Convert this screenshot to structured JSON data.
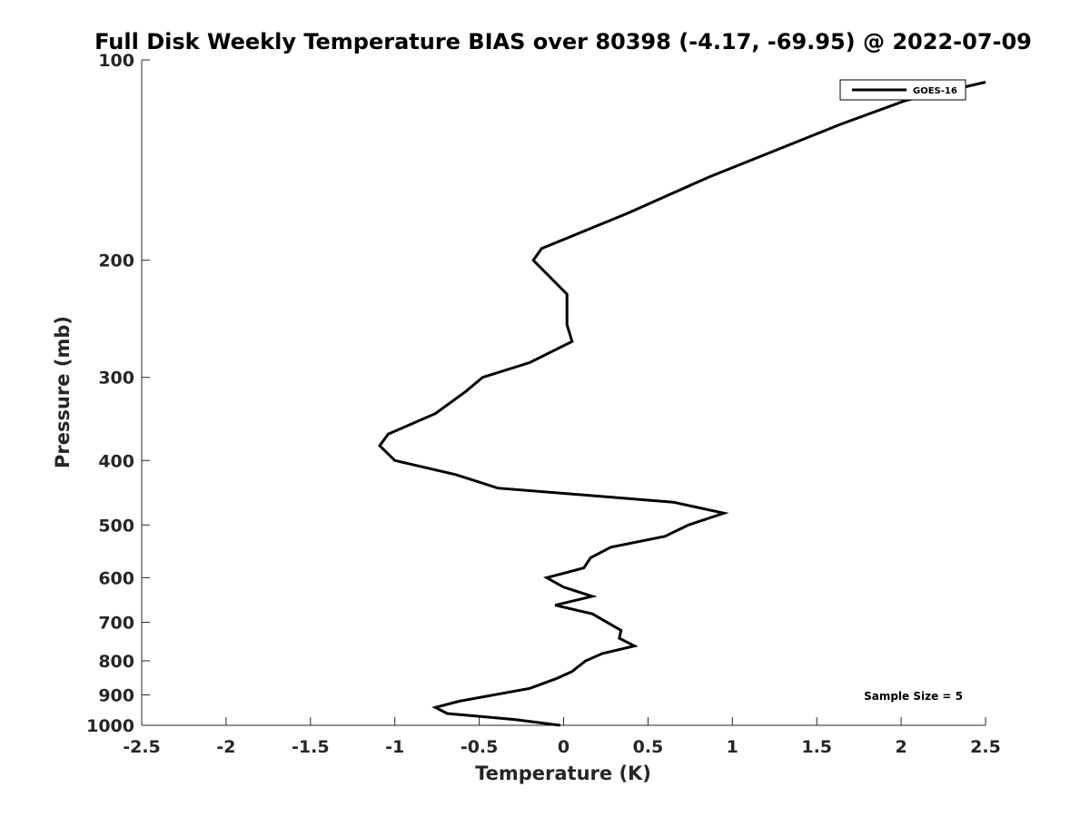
{
  "chart_data": {
    "type": "line",
    "title": "Full Disk Weekly Temperature BIAS over 80398 (-4.17, -69.95) @ 2022-07-09",
    "xlabel": "Temperature (K)",
    "ylabel": "Pressure (mb)",
    "xlim": [
      -2.5,
      2.5
    ],
    "ylim": [
      1000,
      100
    ],
    "yscale": "log",
    "y_reversed": true,
    "xticks": [
      -2.5,
      -2,
      -1.5,
      -1,
      -0.5,
      0,
      0.5,
      1,
      1.5,
      2,
      2.5
    ],
    "xtick_labels": [
      "-2.5",
      "-2",
      "-1.5",
      "-1",
      "-0.5",
      "0",
      "0.5",
      "1",
      "1.5",
      "2",
      "2.5"
    ],
    "yticks": [
      100,
      200,
      300,
      400,
      500,
      600,
      700,
      800,
      900,
      1000
    ],
    "ytick_labels": [
      "100",
      "200",
      "300",
      "400",
      "500",
      "600",
      "700",
      "800",
      "900",
      "1000"
    ],
    "grid": false,
    "legend_position": "top-right",
    "annotation": "Sample Size = 5",
    "series": [
      {
        "name": "GOES-16",
        "color": "#000000",
        "points": [
          {
            "x": 2.5,
            "y": 108
          },
          {
            "x": 2.03,
            "y": 115
          },
          {
            "x": 1.64,
            "y": 125
          },
          {
            "x": 0.86,
            "y": 150
          },
          {
            "x": 0.38,
            "y": 170
          },
          {
            "x": -0.13,
            "y": 192
          },
          {
            "x": -0.18,
            "y": 200
          },
          {
            "x": 0.02,
            "y": 225
          },
          {
            "x": 0.02,
            "y": 250
          },
          {
            "x": 0.05,
            "y": 265
          },
          {
            "x": -0.2,
            "y": 285
          },
          {
            "x": -0.48,
            "y": 300
          },
          {
            "x": -0.58,
            "y": 315
          },
          {
            "x": -0.76,
            "y": 340
          },
          {
            "x": -1.04,
            "y": 365
          },
          {
            "x": -1.09,
            "y": 380
          },
          {
            "x": -1.0,
            "y": 400
          },
          {
            "x": -0.64,
            "y": 420
          },
          {
            "x": -0.39,
            "y": 440
          },
          {
            "x": 0.65,
            "y": 462
          },
          {
            "x": 0.95,
            "y": 480
          },
          {
            "x": 0.74,
            "y": 500
          },
          {
            "x": 0.6,
            "y": 520
          },
          {
            "x": 0.28,
            "y": 540
          },
          {
            "x": 0.16,
            "y": 560
          },
          {
            "x": 0.12,
            "y": 580
          },
          {
            "x": -0.1,
            "y": 600
          },
          {
            "x": 0.0,
            "y": 620
          },
          {
            "x": 0.17,
            "y": 640
          },
          {
            "x": -0.05,
            "y": 660
          },
          {
            "x": 0.17,
            "y": 680
          },
          {
            "x": 0.34,
            "y": 720
          },
          {
            "x": 0.33,
            "y": 740
          },
          {
            "x": 0.42,
            "y": 760
          },
          {
            "x": 0.23,
            "y": 780
          },
          {
            "x": 0.13,
            "y": 800
          },
          {
            "x": 0.05,
            "y": 830
          },
          {
            "x": -0.04,
            "y": 850
          },
          {
            "x": -0.2,
            "y": 880
          },
          {
            "x": -0.62,
            "y": 920
          },
          {
            "x": -0.76,
            "y": 940
          },
          {
            "x": -0.69,
            "y": 960
          },
          {
            "x": -0.29,
            "y": 980
          },
          {
            "x": -0.02,
            "y": 1000
          }
        ]
      }
    ]
  }
}
